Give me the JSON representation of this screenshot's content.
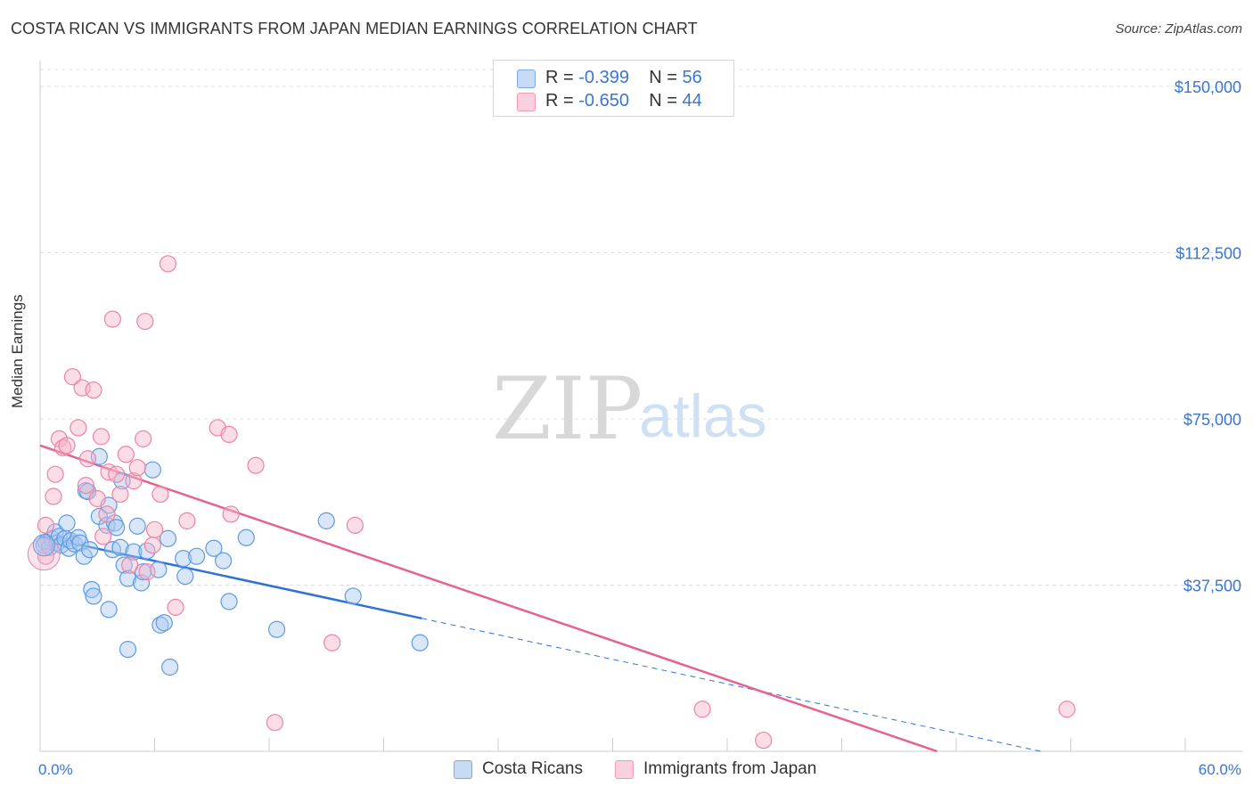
{
  "title": "COSTA RICAN VS IMMIGRANTS FROM JAPAN MEDIAN EARNINGS CORRELATION CHART",
  "source": "Source: ZipAtlas.com",
  "watermark": {
    "zip": "ZIP",
    "atlas": "atlas"
  },
  "legend": {
    "r_label": "R =",
    "n_label": "N =",
    "rows": [
      {
        "name": "Costa Ricans",
        "r": "-0.399",
        "n": "56",
        "color": "#a9c8ef"
      },
      {
        "name": "Immigrants from Japan",
        "r": "-0.650",
        "n": "44",
        "color": "#f6b3c8"
      }
    ]
  },
  "chart_data": {
    "type": "scatter",
    "title": "COSTA RICAN VS IMMIGRANTS FROM JAPAN MEDIAN EARNINGS CORRELATION CHART",
    "xlabel": "",
    "ylabel": "Median Earnings",
    "xlim": [
      0,
      60
    ],
    "ylim": [
      0,
      150000
    ],
    "x_tick_labels": [
      "0.0%",
      "60.0%"
    ],
    "y_ticks": [
      37500,
      75000,
      112500,
      150000
    ],
    "y_tick_labels": [
      "$37,500",
      "$75,000",
      "$112,500",
      "$150,000"
    ],
    "series": [
      {
        "name": "Costa Ricans",
        "color": "#5b9be6",
        "fill": "#a9c8ef",
        "trend": {
          "x0": 0,
          "y0": 48500,
          "x1": 20,
          "y1": 30000,
          "dash_to_x": 60,
          "dash_to_y": -7000,
          "color": "#2f72d6"
        },
        "points": [
          [
            0.3,
            47200
          ],
          [
            0.5,
            46000
          ],
          [
            0.6,
            48000
          ],
          [
            0.8,
            49500
          ],
          [
            0.9,
            47000
          ],
          [
            1.0,
            48500
          ],
          [
            1.1,
            46500
          ],
          [
            1.3,
            48000
          ],
          [
            1.4,
            51500
          ],
          [
            1.5,
            45800
          ],
          [
            1.6,
            47500
          ],
          [
            1.8,
            46800
          ],
          [
            2.0,
            48200
          ],
          [
            2.1,
            47000
          ],
          [
            2.3,
            44000
          ],
          [
            2.4,
            58800
          ],
          [
            2.5,
            58600
          ],
          [
            2.6,
            45500
          ],
          [
            2.7,
            36500
          ],
          [
            2.8,
            35000
          ],
          [
            3.1,
            53000
          ],
          [
            3.1,
            66500
          ],
          [
            3.5,
            51000
          ],
          [
            3.6,
            55500
          ],
          [
            3.6,
            32000
          ],
          [
            3.8,
            45500
          ],
          [
            3.9,
            51500
          ],
          [
            4.0,
            50500
          ],
          [
            4.2,
            46000
          ],
          [
            4.3,
            61000
          ],
          [
            4.4,
            42000
          ],
          [
            4.6,
            39000
          ],
          [
            4.6,
            23000
          ],
          [
            4.9,
            45000
          ],
          [
            5.1,
            50800
          ],
          [
            5.3,
            38000
          ],
          [
            5.4,
            40500
          ],
          [
            5.6,
            45200
          ],
          [
            5.9,
            63500
          ],
          [
            6.2,
            41000
          ],
          [
            6.3,
            28500
          ],
          [
            6.5,
            29000
          ],
          [
            6.7,
            48000
          ],
          [
            6.8,
            19000
          ],
          [
            7.5,
            43500
          ],
          [
            7.6,
            39500
          ],
          [
            8.2,
            44000
          ],
          [
            9.1,
            45800
          ],
          [
            9.6,
            43000
          ],
          [
            9.9,
            33800
          ],
          [
            10.8,
            48200
          ],
          [
            12.4,
            27500
          ],
          [
            15.0,
            52000
          ],
          [
            16.4,
            35000
          ],
          [
            19.9,
            24500
          ],
          [
            0.2,
            46500
          ]
        ]
      },
      {
        "name": "Immigrants from Japan",
        "color": "#ee83a6",
        "fill": "#f6b3c8",
        "trend": {
          "x0": 0,
          "y0": 69000,
          "x1": 47,
          "y1": 0,
          "color": "#e5638f"
        },
        "points": [
          [
            0.3,
            51000
          ],
          [
            0.3,
            44000
          ],
          [
            0.7,
            57500
          ],
          [
            0.8,
            62500
          ],
          [
            1.0,
            70500
          ],
          [
            1.2,
            68500
          ],
          [
            1.4,
            69000
          ],
          [
            1.7,
            84500
          ],
          [
            2.0,
            73000
          ],
          [
            2.2,
            82000
          ],
          [
            2.4,
            60000
          ],
          [
            2.5,
            66000
          ],
          [
            2.8,
            81500
          ],
          [
            3.0,
            57000
          ],
          [
            3.2,
            71000
          ],
          [
            3.3,
            48500
          ],
          [
            3.5,
            53500
          ],
          [
            3.6,
            63000
          ],
          [
            3.8,
            97500
          ],
          [
            4.0,
            62500
          ],
          [
            4.2,
            58000
          ],
          [
            4.5,
            67000
          ],
          [
            4.7,
            42000
          ],
          [
            4.9,
            61000
          ],
          [
            5.1,
            64000
          ],
          [
            5.4,
            70500
          ],
          [
            5.5,
            97000
          ],
          [
            5.6,
            40500
          ],
          [
            5.9,
            46500
          ],
          [
            6.0,
            50000
          ],
          [
            6.3,
            58000
          ],
          [
            6.7,
            110000
          ],
          [
            7.1,
            32500
          ],
          [
            7.7,
            52000
          ],
          [
            9.3,
            73000
          ],
          [
            9.9,
            71500
          ],
          [
            10.0,
            53500
          ],
          [
            11.3,
            64500
          ],
          [
            12.3,
            6500
          ],
          [
            15.3,
            24500
          ],
          [
            16.5,
            51000
          ],
          [
            34.7,
            9500
          ],
          [
            37.9,
            2500
          ],
          [
            53.8,
            9500
          ]
        ]
      }
    ]
  }
}
